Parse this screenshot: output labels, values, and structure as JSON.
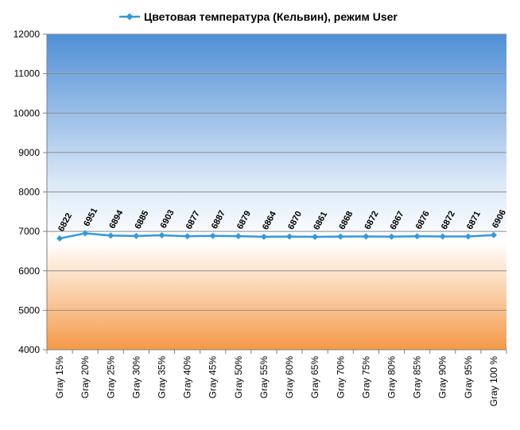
{
  "chart_data": {
    "type": "line",
    "title": "Цветовая температура (Кельвин), режим User",
    "xlabel": "",
    "ylabel": "",
    "categories": [
      "Gray 15%",
      "Gray 20%",
      "Gray 25%",
      "Gray 30%",
      "Gray 35%",
      "Gray 40%",
      "Gray 45%",
      "Gray 50%",
      "Gray 55%",
      "Gray 60%",
      "Gray 65%",
      "Gray 70%",
      "Gray 75%",
      "Gray 80%",
      "Gray 85%",
      "Gray 90%",
      "Gray 95%",
      "Gray 100 %"
    ],
    "series": [
      {
        "name": "Цветовая температура (Кельвин), режим User",
        "values": [
          6822,
          6951,
          6894,
          6885,
          6903,
          6877,
          6887,
          6879,
          6864,
          6870,
          6861,
          6868,
          6872,
          6867,
          6876,
          6872,
          6871,
          6906
        ],
        "color": "#3399dd"
      }
    ],
    "ylim": [
      4000,
      12000
    ],
    "yticks": [
      4000,
      5000,
      6000,
      7000,
      8000,
      9000,
      10000,
      11000,
      12000
    ],
    "grid": true,
    "legend": "top",
    "background": {
      "top": "#4f8fd6",
      "middle": "#ffffff",
      "bottom": "#f59a47"
    }
  }
}
